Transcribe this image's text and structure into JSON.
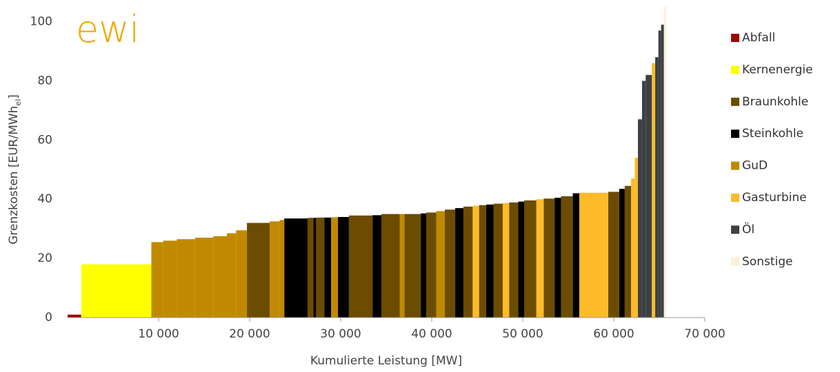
{
  "chart_data": {
    "type": "merit_order",
    "logo": "ewi",
    "xlabel": "Kumulierte Leistung [MW]",
    "ylabel": {
      "text": "Grenzkosten [EUR/MWh",
      "sub": "el",
      "end": "]"
    },
    "xlim": [
      0,
      70000
    ],
    "xticks": [
      {
        "value": 10000,
        "label": "10 000"
      },
      {
        "value": 20000,
        "label": "20 000"
      },
      {
        "value": 30000,
        "label": "30 000"
      },
      {
        "value": 40000,
        "label": "40 000"
      },
      {
        "value": 50000,
        "label": "50 000"
      },
      {
        "value": 60000,
        "label": "60 000"
      },
      {
        "value": 70000,
        "label": "70 000"
      }
    ],
    "ylim": [
      0,
      105
    ],
    "yticks": [
      0,
      20,
      40,
      60,
      80,
      100
    ],
    "legend": "right",
    "series": [
      {
        "name": "Abfall",
        "color": "#9b0a0a",
        "blocks": [
          {
            "start": 0,
            "end": 1500,
            "value": 1
          }
        ]
      },
      {
        "name": "Kernenergie",
        "color": "#ffff00",
        "blocks": [
          {
            "start": 1500,
            "end": 9200,
            "value": 18
          }
        ]
      },
      {
        "name": "Braunkohle",
        "color": "#6b4c00",
        "blocks": [
          {
            "start": 19700,
            "end": 22200,
            "value": 32
          },
          {
            "start": 26360,
            "end": 27000,
            "value": 33.7
          },
          {
            "start": 27300,
            "end": 28200,
            "value": 33.8
          },
          {
            "start": 30900,
            "end": 33500,
            "value": 34.5
          },
          {
            "start": 34470,
            "end": 36500,
            "value": 35
          },
          {
            "start": 37000,
            "end": 38800,
            "value": 35
          },
          {
            "start": 39400,
            "end": 40500,
            "value": 35.5
          },
          {
            "start": 41440,
            "end": 42580,
            "value": 36.5
          },
          {
            "start": 43480,
            "end": 44500,
            "value": 37.5
          },
          {
            "start": 45200,
            "end": 45980,
            "value": 38
          },
          {
            "start": 46800,
            "end": 47800,
            "value": 38.5
          },
          {
            "start": 48500,
            "end": 49500,
            "value": 38.9
          },
          {
            "start": 50150,
            "end": 51500,
            "value": 39.6
          },
          {
            "start": 52300,
            "end": 53500,
            "value": 40.2
          },
          {
            "start": 54200,
            "end": 55500,
            "value": 41
          },
          {
            "start": 59390,
            "end": 60600,
            "value": 42.5
          },
          {
            "start": 61200,
            "end": 61900,
            "value": 44.5
          }
        ]
      },
      {
        "name": "Steinkohle",
        "color": "#000000",
        "blocks": [
          {
            "start": 23800,
            "end": 26360,
            "value": 33.5
          },
          {
            "start": 27000,
            "end": 27300,
            "value": 33.7
          },
          {
            "start": 28200,
            "end": 28940,
            "value": 33.8
          },
          {
            "start": 29700,
            "end": 30900,
            "value": 34
          },
          {
            "start": 33500,
            "end": 34470,
            "value": 34.6
          },
          {
            "start": 38800,
            "end": 39400,
            "value": 35.2
          },
          {
            "start": 42580,
            "end": 43480,
            "value": 37
          },
          {
            "start": 45980,
            "end": 46800,
            "value": 38.2
          },
          {
            "start": 49500,
            "end": 50150,
            "value": 39.2
          },
          {
            "start": 53500,
            "end": 54200,
            "value": 40.5
          },
          {
            "start": 55500,
            "end": 56210,
            "value": 42
          },
          {
            "start": 60600,
            "end": 61200,
            "value": 43.5
          }
        ]
      },
      {
        "name": "GuD",
        "color": "#c08a00",
        "blocks": [
          {
            "start": 9200,
            "end": 10500,
            "value": 25.5
          },
          {
            "start": 10500,
            "end": 12000,
            "value": 26
          },
          {
            "start": 12000,
            "end": 14000,
            "value": 26.5
          },
          {
            "start": 14000,
            "end": 16000,
            "value": 27
          },
          {
            "start": 16000,
            "end": 17500,
            "value": 27.5
          },
          {
            "start": 17500,
            "end": 18500,
            "value": 28.5
          },
          {
            "start": 18500,
            "end": 19700,
            "value": 29.5
          },
          {
            "start": 22200,
            "end": 23300,
            "value": 32.5
          },
          {
            "start": 23300,
            "end": 23800,
            "value": 33
          },
          {
            "start": 28940,
            "end": 29700,
            "value": 33.9
          },
          {
            "start": 36500,
            "end": 37000,
            "value": 35
          },
          {
            "start": 40500,
            "end": 41440,
            "value": 36
          }
        ]
      },
      {
        "name": "Gasturbine",
        "color": "#fdbb2a",
        "blocks": [
          {
            "start": 44500,
            "end": 45200,
            "value": 37.8
          },
          {
            "start": 47800,
            "end": 48500,
            "value": 38.7
          },
          {
            "start": 51500,
            "end": 52300,
            "value": 40
          },
          {
            "start": 56210,
            "end": 59390,
            "value": 42.2
          },
          {
            "start": 61900,
            "end": 62300,
            "value": 47
          },
          {
            "start": 62300,
            "end": 62650,
            "value": 54
          },
          {
            "start": 64170,
            "end": 64550,
            "value": 86
          }
        ]
      },
      {
        "name": "Öl",
        "color": "#3d4044",
        "blocks": [
          {
            "start": 62650,
            "end": 63100,
            "value": 67
          },
          {
            "start": 63100,
            "end": 63500,
            "value": 80
          },
          {
            "start": 63500,
            "end": 64170,
            "value": 82
          },
          {
            "start": 64550,
            "end": 64900,
            "value": 88
          },
          {
            "start": 64900,
            "end": 65200,
            "value": 97
          },
          {
            "start": 65200,
            "end": 65500,
            "value": 99
          }
        ]
      },
      {
        "name": "Sonstige",
        "color": "#fdf0d5",
        "blocks": [
          {
            "start": 65530,
            "end": 65760,
            "value": 105
          }
        ]
      }
    ]
  }
}
